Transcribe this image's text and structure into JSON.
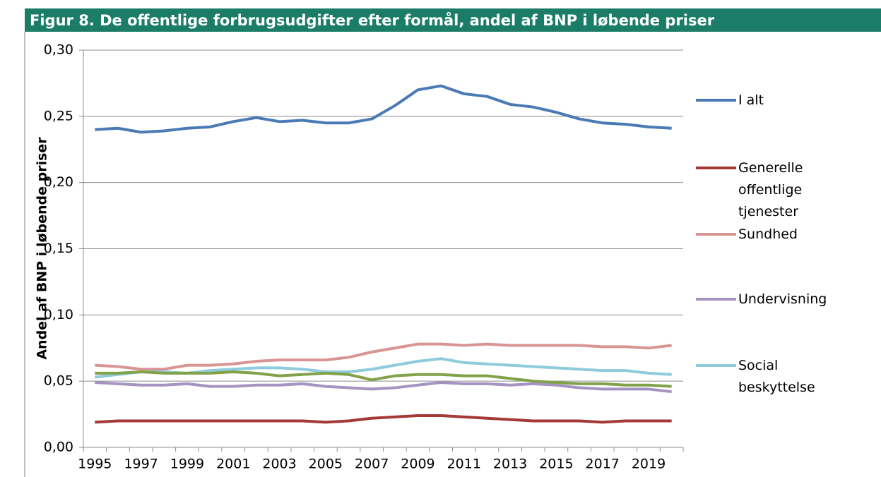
{
  "chart_data": {
    "type": "line",
    "title": "Figur 8. De offentlige forbrugsudgifter efter formål, andel af BNP i løbende priser",
    "y_label": "Andel af BNP i løbende priser",
    "categories": [
      "1995",
      null,
      "1997",
      null,
      "1999",
      null,
      "2001",
      null,
      "2003",
      null,
      "2005",
      null,
      "2007",
      null,
      "2009",
      null,
      "2011",
      null,
      "2013",
      null,
      "2015",
      null,
      "2017",
      null,
      "2019",
      null
    ],
    "ylim": [
      0,
      0.3
    ],
    "yticks": [
      {
        "value": 0,
        "label": "0,00"
      },
      {
        "value": 0.05,
        "label": "0,05"
      },
      {
        "value": 0.1,
        "label": "0,10"
      },
      {
        "value": 0.15,
        "label": "0,15"
      },
      {
        "value": 0.2,
        "label": "0,20"
      },
      {
        "value": 0.25,
        "label": "0,25"
      },
      {
        "value": 0.3,
        "label": "0,30"
      }
    ],
    "grid": true,
    "legend": "right",
    "series": [
      {
        "name": "I alt",
        "color": "#4a7ab5",
        "values": [
          0.24,
          0.241,
          0.238,
          0.239,
          0.241,
          0.242,
          0.246,
          0.249,
          0.246,
          0.247,
          0.245,
          0.245,
          0.248,
          0.258,
          0.27,
          0.273,
          0.267,
          0.265,
          0.259,
          0.257,
          0.253,
          0.248,
          0.245,
          0.244,
          0.242,
          0.241
        ]
      },
      {
        "name": "Generelle offentlige tjenester",
        "color": "#a33a36",
        "values": [
          0.019,
          0.02,
          0.02,
          0.02,
          0.02,
          0.02,
          0.02,
          0.02,
          0.02,
          0.02,
          0.019,
          0.02,
          0.022,
          0.023,
          0.024,
          0.024,
          0.023,
          0.022,
          0.021,
          0.02,
          0.02,
          0.02,
          0.019,
          0.02,
          0.02,
          0.02
        ]
      },
      {
        "name": "Sundhed",
        "color": "#d99594",
        "values": [
          0.062,
          0.061,
          0.059,
          0.059,
          0.062,
          0.062,
          0.063,
          0.065,
          0.066,
          0.066,
          0.066,
          0.068,
          0.072,
          0.075,
          0.078,
          0.078,
          0.077,
          0.078,
          0.077,
          0.077,
          0.077,
          0.077,
          0.076,
          0.076,
          0.075,
          0.077
        ]
      },
      {
        "name": "Undervisning",
        "color": "#a593c1",
        "values": [
          0.049,
          0.048,
          0.047,
          0.047,
          0.048,
          0.046,
          0.046,
          0.047,
          0.047,
          0.048,
          0.046,
          0.045,
          0.044,
          0.045,
          0.047,
          0.049,
          0.048,
          0.048,
          0.047,
          0.048,
          0.047,
          0.045,
          0.044,
          0.044,
          0.044,
          0.042
        ]
      },
      {
        "name": "Social beskyttelse",
        "color": "#8ecbdc",
        "values": [
          0.053,
          0.055,
          0.057,
          0.057,
          0.056,
          0.058,
          0.059,
          0.06,
          0.06,
          0.059,
          0.057,
          0.057,
          0.059,
          0.062,
          0.065,
          0.067,
          0.064,
          0.063,
          0.062,
          0.061,
          0.06,
          0.059,
          0.058,
          0.058,
          0.056,
          0.055
        ]
      },
      {
        "color": "#82a24a",
        "values": [
          0.056,
          0.056,
          0.057,
          0.056,
          0.056,
          0.056,
          0.057,
          0.056,
          0.054,
          0.055,
          0.056,
          0.055,
          0.051,
          0.054,
          0.055,
          0.055,
          0.054,
          0.054,
          0.052,
          0.05,
          0.049,
          0.048,
          0.048,
          0.047,
          0.047,
          0.046
        ]
      }
    ]
  }
}
